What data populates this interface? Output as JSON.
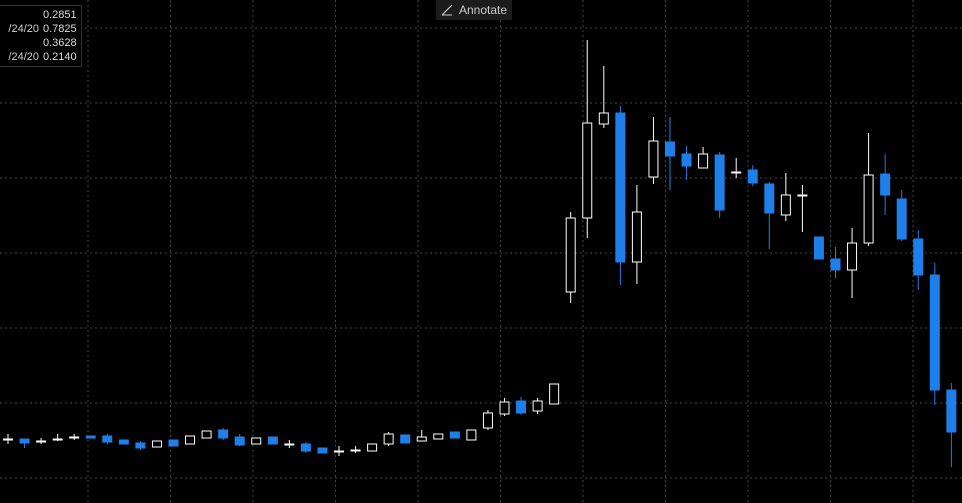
{
  "chart_data": {
    "type": "candlestick",
    "annotate_button": "Annotate",
    "info_rows": [
      {
        "value": "0.2851"
      },
      {
        "label": "/24/20",
        "value": "0.7825"
      },
      {
        "value": "0.3628"
      },
      {
        "label": "/24/20",
        "value": "0.2140"
      }
    ],
    "ylim": [
      0,
      503
    ],
    "up_color": "#ffffff",
    "down_color": "#1f7fe8",
    "grid": true,
    "open": [
      64,
      64,
      62,
      64,
      66,
      67,
      67,
      63,
      60,
      56,
      63,
      59,
      65,
      73,
      66,
      59,
      66,
      59,
      59,
      55,
      52,
      53,
      52,
      59,
      68,
      62,
      64,
      71,
      63,
      75,
      89,
      102,
      92,
      99,
      211,
      285,
      379,
      390,
      241,
      326,
      361,
      349,
      335,
      348,
      331,
      333,
      319,
      288,
      308,
      266,
      244,
      233,
      260,
      329,
      304,
      264,
      228,
      113
    ],
    "high": [
      69,
      64,
      65,
      69,
      69,
      67,
      69,
      63,
      62,
      62,
      63,
      67,
      72,
      75,
      69,
      65,
      66,
      63,
      61,
      55,
      57,
      57,
      59,
      71,
      68,
      73,
      69,
      71,
      73,
      93,
      105,
      106,
      105,
      119,
      291,
      463,
      437,
      397,
      318,
      386,
      386,
      357,
      356,
      351,
      345,
      338,
      321,
      330,
      318,
      266,
      256,
      275,
      370,
      349,
      313,
      273,
      240,
      120
    ],
    "low": [
      59,
      55,
      59,
      62,
      63,
      65,
      59,
      59,
      53,
      56,
      57,
      59,
      65,
      63,
      57,
      59,
      59,
      55,
      50,
      50,
      47,
      50,
      52,
      57,
      60,
      62,
      64,
      65,
      63,
      73,
      87,
      88,
      89,
      99,
      200,
      265,
      375,
      218,
      219,
      319,
      313,
      323,
      335,
      285,
      325,
      317,
      254,
      282,
      271,
      244,
      225,
      205,
      257,
      288,
      262,
      213,
      98,
      36
    ],
    "close": [
      64,
      60,
      62,
      64,
      66,
      65,
      61,
      59,
      55,
      62,
      57,
      67,
      72,
      65,
      58,
      65,
      59,
      59,
      52,
      50,
      52,
      53,
      59,
      69,
      60,
      66,
      69,
      65,
      73,
      90,
      101,
      90,
      102,
      119,
      285,
      380,
      390,
      241,
      291,
      362,
      347,
      337,
      349,
      293,
      331,
      320,
      290,
      308,
      308,
      244,
      233,
      260,
      328,
      308,
      264,
      228,
      113,
      71
    ]
  }
}
